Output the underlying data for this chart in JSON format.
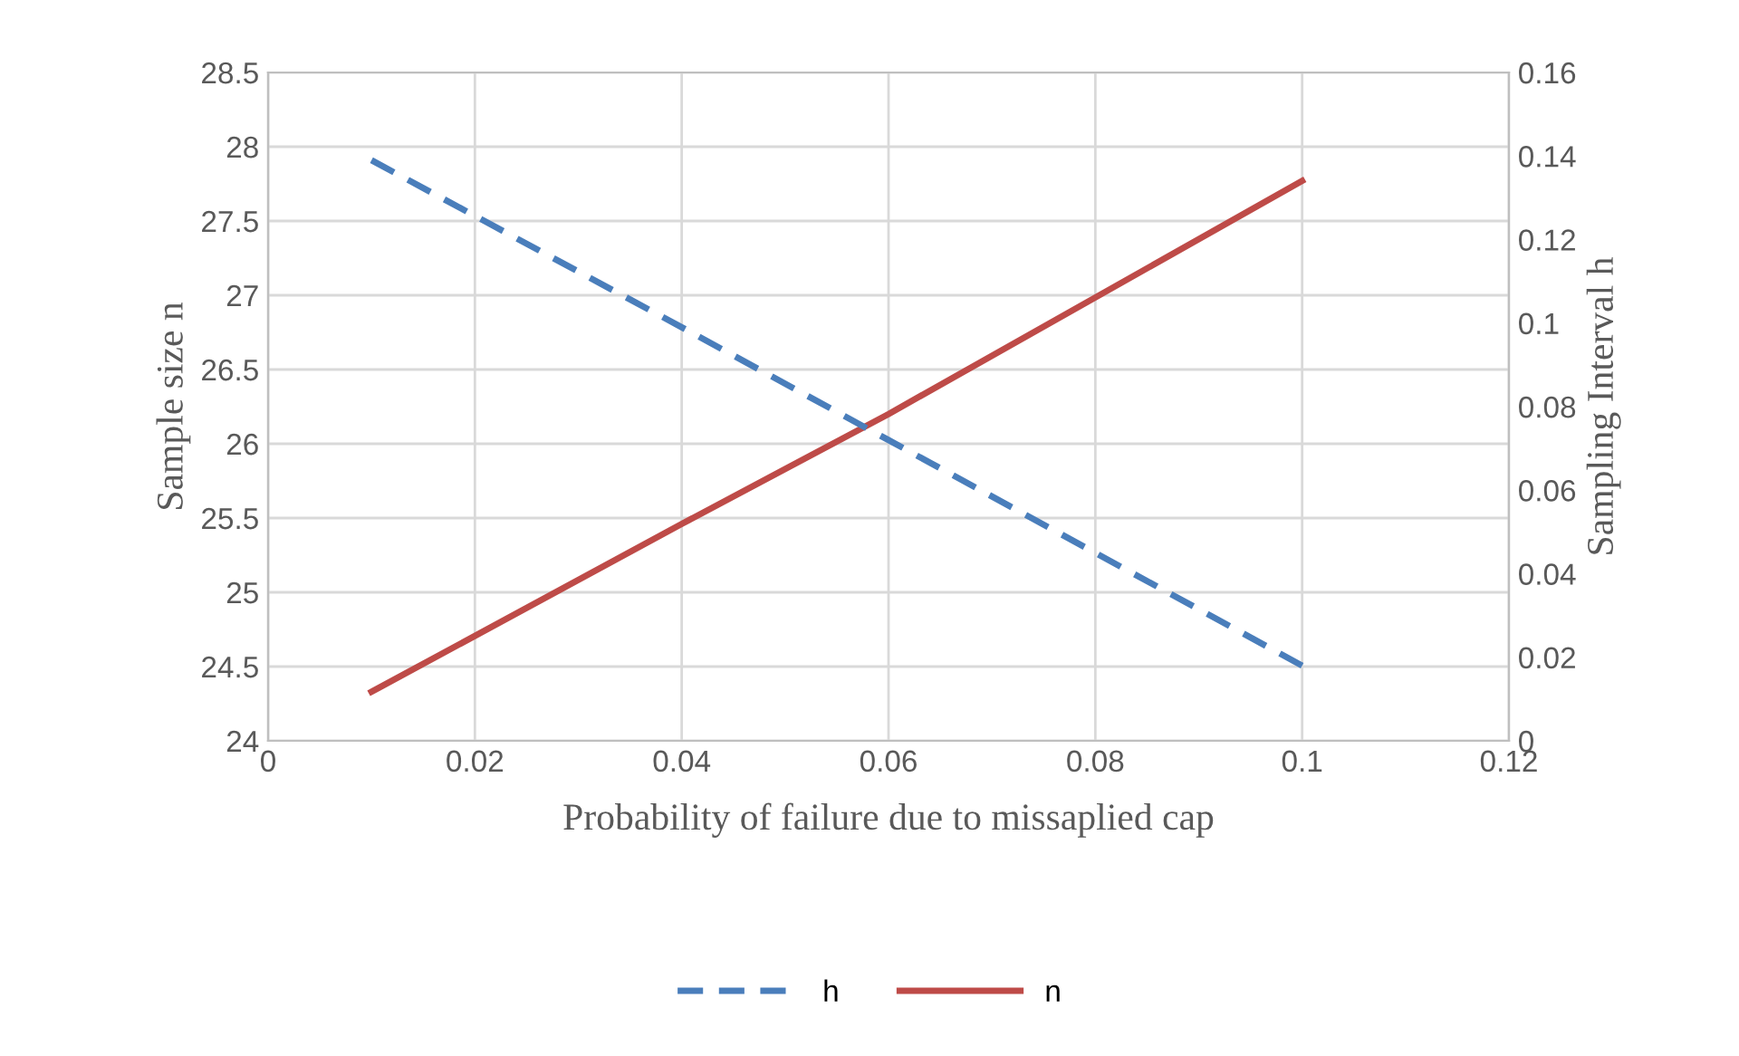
{
  "chart_data": {
    "type": "line",
    "xlabel": "Probability of failure due to missaplied cap",
    "ylabel": "Sample size n",
    "y2label": "Sampling Interval h",
    "x": [
      0.01,
      0.04,
      0.06,
      0.1
    ],
    "series": [
      {
        "name": "h",
        "color": "#4a7ebb",
        "axis": "y2",
        "line_style": "dashed",
        "values": [
          0.139,
          0.099,
          0.072,
          0.018
        ]
      },
      {
        "name": "n",
        "color": "#be4b48",
        "axis": "y",
        "line_style": "solid",
        "values": [
          24.33,
          25.46,
          26.2,
          27.77
        ]
      }
    ],
    "xlim": [
      0,
      0.12
    ],
    "xticks": [
      0,
      0.02,
      0.04,
      0.06,
      0.08,
      0.1,
      0.12
    ],
    "ylim": [
      24,
      28.5
    ],
    "yticks": [
      24,
      24.5,
      25,
      25.5,
      26,
      26.5,
      27,
      27.5,
      28,
      28.5
    ],
    "y2lim": [
      0,
      0.16
    ],
    "y2ticks": [
      0,
      0.02,
      0.04,
      0.06,
      0.08,
      0.1,
      0.12,
      0.14,
      0.16
    ],
    "grid": true,
    "legend": "bottom",
    "marker": "none"
  }
}
